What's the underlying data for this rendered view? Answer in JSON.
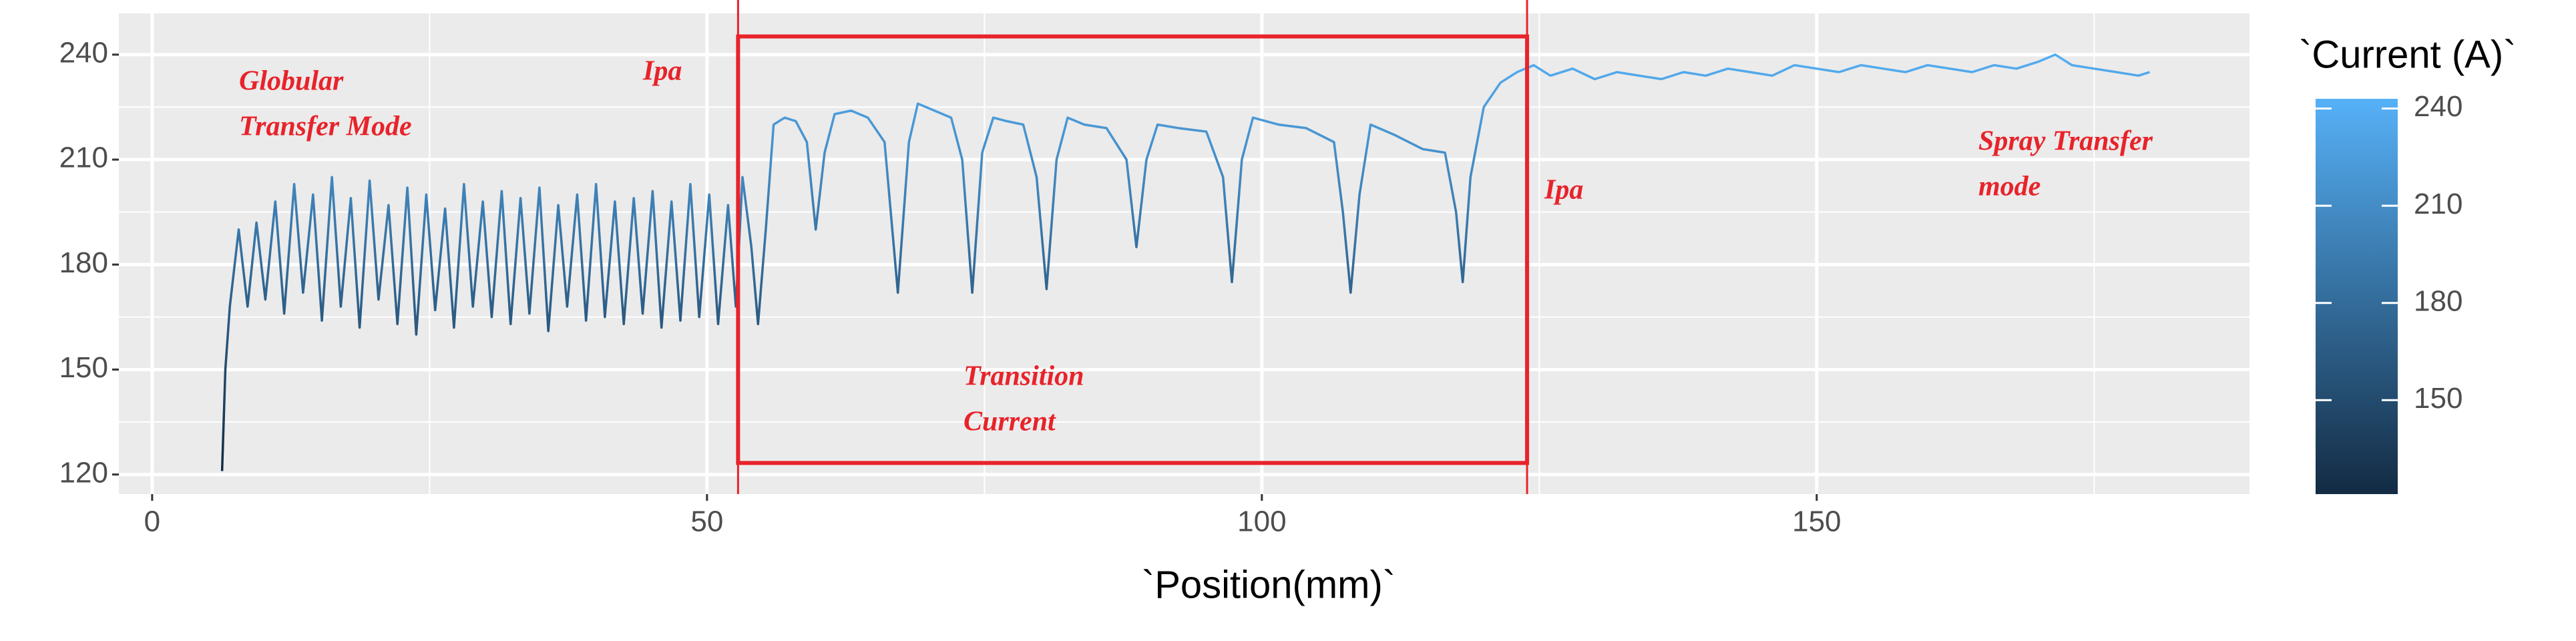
{
  "chart_data": {
    "type": "line",
    "x_label": "`Position(mm)`",
    "legend_title": "`Current (A)`",
    "xlim": [
      -3,
      189
    ],
    "ylim": [
      114.4,
      251.8
    ],
    "xticks": [
      0,
      50,
      100,
      150
    ],
    "yticks": [
      120,
      150,
      180,
      210,
      240
    ],
    "xticks_minor": [
      25,
      75,
      125,
      175
    ],
    "yticks_minor": [
      135,
      165,
      195,
      225
    ],
    "grid": true,
    "colorbar": {
      "low": "#132B43",
      "high": "#56B1F7",
      "lim": [
        121,
        243
      ],
      "ticks": [
        150,
        180,
        210,
        240
      ]
    },
    "x": [
      6.3,
      6.6,
      7.0,
      7.8,
      8.6,
      9.4,
      10.2,
      11.1,
      11.9,
      12.8,
      13.6,
      14.5,
      15.3,
      16.2,
      17.0,
      17.9,
      18.7,
      19.6,
      20.4,
      21.3,
      22.1,
      23.0,
      23.8,
      24.7,
      25.5,
      26.4,
      27.2,
      28.1,
      28.9,
      29.8,
      30.6,
      31.5,
      32.3,
      33.2,
      34.0,
      34.9,
      35.7,
      36.6,
      37.4,
      38.3,
      39.1,
      40.0,
      40.8,
      41.7,
      42.5,
      43.4,
      44.2,
      45.1,
      45.9,
      46.8,
      47.6,
      48.5,
      49.3,
      50.2,
      51.0,
      51.9,
      52.6,
      53.2,
      54.0,
      54.6,
      55.3,
      56.0,
      57.0,
      58.0,
      59.0,
      59.8,
      60.6,
      61.5,
      63.0,
      64.5,
      66.0,
      67.2,
      68.2,
      69.0,
      70.5,
      72.0,
      73.0,
      73.9,
      74.8,
      75.8,
      77.0,
      78.5,
      79.7,
      80.6,
      81.5,
      82.5,
      84.0,
      86.0,
      87.8,
      88.7,
      89.6,
      90.6,
      92.5,
      95.0,
      96.5,
      97.3,
      98.2,
      99.2,
      101.5,
      104.0,
      106.5,
      107.3,
      108.0,
      108.8,
      109.8,
      112.0,
      114.5,
      116.5,
      117.5,
      118.1,
      118.8,
      120.0,
      121.5,
      123.0,
      124.5,
      126,
      128,
      130,
      132,
      134,
      136,
      138,
      140,
      142,
      144,
      146,
      148,
      150,
      152,
      154,
      156,
      158,
      160,
      162,
      164,
      166,
      168,
      170,
      171.5,
      173,
      175,
      177,
      179,
      180
    ],
    "values": [
      121,
      150,
      168,
      190,
      168,
      192,
      170,
      198,
      166,
      203,
      172,
      200,
      164,
      205,
      168,
      199,
      162,
      204,
      170,
      197,
      163,
      202,
      160,
      200,
      167,
      196,
      162,
      203,
      168,
      198,
      165,
      201,
      163,
      199,
      166,
      202,
      161,
      197,
      168,
      200,
      164,
      203,
      165,
      198,
      163,
      199,
      166,
      201,
      162,
      198,
      164,
      203,
      165,
      200,
      163,
      197,
      168,
      205,
      185,
      163,
      190,
      220,
      222,
      221,
      215,
      190,
      212,
      223,
      224,
      222,
      215,
      172,
      215,
      226,
      224,
      222,
      210,
      172,
      212,
      222,
      221,
      220,
      205,
      173,
      210,
      222,
      220,
      219,
      210,
      185,
      210,
      220,
      219,
      218,
      205,
      175,
      210,
      222,
      220,
      219,
      215,
      195,
      172,
      200,
      220,
      217,
      213,
      212,
      195,
      175,
      205,
      225,
      232,
      235,
      237,
      234,
      236,
      233,
      235,
      234,
      233,
      235,
      234,
      236,
      235,
      234,
      237,
      236,
      235,
      237,
      236,
      235,
      237,
      236,
      235,
      237,
      236,
      238,
      240,
      237,
      236,
      235,
      234,
      235
    ],
    "box": {
      "x": [
        52.8,
        123.9
      ],
      "y": [
        123.3,
        245.2
      ],
      "color": "#e8232a"
    },
    "annotations": [
      {
        "lines": [
          "Globular",
          "Transfer Mode"
        ]
      },
      {
        "lines": [
          "Ipa"
        ]
      },
      {
        "lines": [
          "Ipa"
        ]
      },
      {
        "lines": [
          "Transition",
          "Current"
        ]
      },
      {
        "lines": [
          "Spray Transfer",
          "mode"
        ]
      }
    ]
  }
}
